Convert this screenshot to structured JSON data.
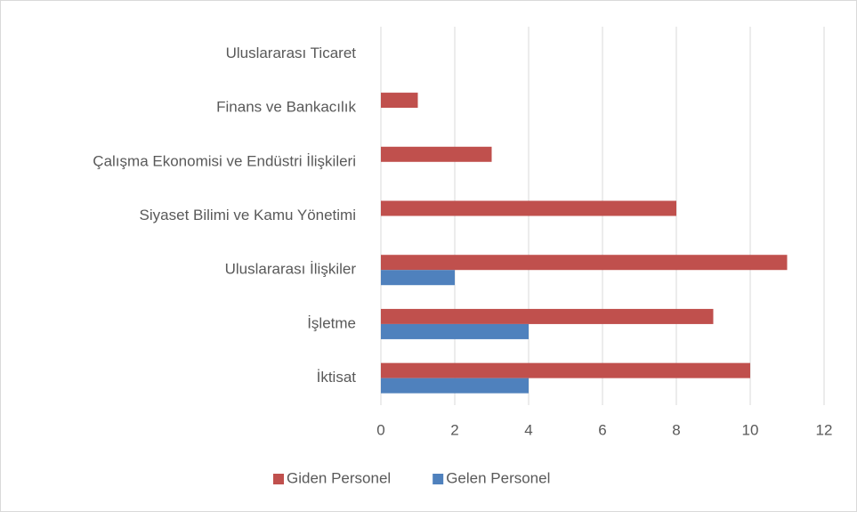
{
  "chart_data": {
    "type": "barh",
    "categories": [
      "İktisat",
      "İşletme",
      "Uluslararası İlişkiler",
      "Siyaset Bilimi ve Kamu Yönetimi",
      "Çalışma Ekonomisi ve Endüstri İlişkileri",
      "Finans ve Bankacılık",
      "Uluslararası Ticaret"
    ],
    "series": [
      {
        "name": "Giden Personel",
        "color": "#c0504d",
        "values": [
          10,
          9,
          11,
          8,
          3,
          1,
          0
        ]
      },
      {
        "name": "Gelen Personel",
        "color": "#4f81bd",
        "values": [
          4,
          4,
          2,
          0,
          0,
          0,
          0
        ]
      }
    ],
    "xlim": [
      0,
      12
    ],
    "xticks": [
      0,
      2,
      4,
      6,
      8,
      10,
      12
    ],
    "grid": true,
    "legend": "bottom"
  }
}
